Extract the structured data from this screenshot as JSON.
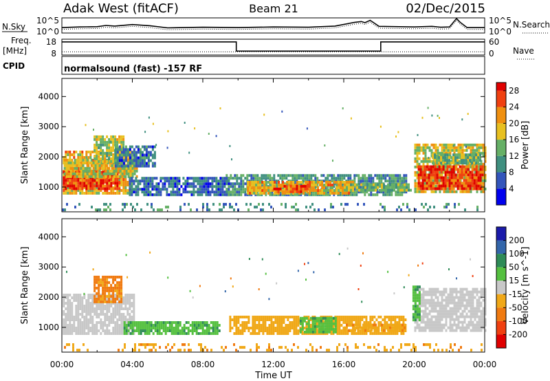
{
  "header": {
    "radar": "Adak West (fitACF)",
    "beam": "Beam 21",
    "date": "02/Dec/2015"
  },
  "nsky_panel": {
    "left_label": "N.Sky",
    "right_label": "N.Search",
    "y_ticks": [
      "10^5",
      "10^0"
    ],
    "y_range_log10": [
      0,
      5
    ],
    "x_hours": [
      0,
      1,
      2,
      2.5,
      3,
      4,
      5,
      6,
      8,
      10,
      12,
      14,
      15.5,
      16.6,
      17,
      17.2,
      17.5,
      18,
      20,
      21,
      21.5,
      22,
      22.4,
      22.6,
      23,
      24
    ],
    "values_log10": [
      1.8,
      2.0,
      2.1,
      2.5,
      2.3,
      2.8,
      2.4,
      1.7,
      1.9,
      1.8,
      2.0,
      1.9,
      2.3,
      3.5,
      3.8,
      3.4,
      4.2,
      2.2,
      2.0,
      2.2,
      1.9,
      2.0,
      4.8,
      3.6,
      1.8,
      1.8
    ]
  },
  "freq_panel": {
    "left_label": "Freq.",
    "left_unit": "[MHz]",
    "right_label": "Nave",
    "left_ticks": [
      "18",
      "8"
    ],
    "right_ticks": [
      "60",
      "0"
    ],
    "freq_range_mhz": [
      8,
      18
    ],
    "freq_steps": [
      {
        "from_h": 0,
        "to_h": 9.9,
        "mhz": 16.3
      },
      {
        "from_h": 9.9,
        "to_h": 18.1,
        "mhz": 10.5
      },
      {
        "from_h": 18.1,
        "to_h": 24,
        "mhz": 16.3
      }
    ],
    "nave_range": [
      0,
      60
    ],
    "nave_value": 12
  },
  "cpid": {
    "label": "CPID",
    "text": "normalsound (fast) -157 RF"
  },
  "chart_data": [
    {
      "type": "heatmap",
      "name": "power",
      "ylabel": "Slant Range [km]",
      "xlabel": "Time UT",
      "x_ticks": [
        "00:00",
        "04:00",
        "08:00",
        "12:00",
        "16:00",
        "20:00",
        "00:00"
      ],
      "y_ticks": [
        1000,
        2000,
        3000,
        4000
      ],
      "xlim_hours": [
        0,
        24
      ],
      "ylim_km": [
        180,
        4600
      ],
      "colorbar": {
        "label": "Power [dB]",
        "ticks": [
          4,
          8,
          12,
          16,
          20,
          24,
          28
        ],
        "range": [
          0,
          30
        ]
      },
      "regions": [
        {
          "t0": 0.05,
          "t1": 4.0,
          "r0": 750,
          "r1": 2150,
          "v": 20
        },
        {
          "t0": 0.05,
          "t1": 3.3,
          "r0": 900,
          "r1": 1500,
          "v": 28
        },
        {
          "t0": 0.1,
          "t1": 4.2,
          "r0": 1300,
          "r1": 1900,
          "v": 17
        },
        {
          "t0": 1.8,
          "t1": 3.5,
          "r0": 1800,
          "r1": 2650,
          "v": 16
        },
        {
          "t0": 3.0,
          "t1": 5.3,
          "r0": 1650,
          "r1": 2300,
          "v": 8
        },
        {
          "t0": 3.8,
          "t1": 9.5,
          "r0": 700,
          "r1": 1250,
          "v": 7
        },
        {
          "t0": 9.3,
          "t1": 19.5,
          "r0": 700,
          "r1": 1350,
          "v": 11
        },
        {
          "t0": 10.5,
          "t1": 16.5,
          "r0": 750,
          "r1": 1200,
          "v": 20
        },
        {
          "t0": 12.0,
          "t1": 14.0,
          "r0": 800,
          "r1": 1050,
          "v": 26
        },
        {
          "t0": 16.0,
          "t1": 19.8,
          "r0": 850,
          "r1": 1100,
          "v": 14
        },
        {
          "t0": 20.0,
          "t1": 24.0,
          "r0": 800,
          "r1": 2350,
          "v": 17
        },
        {
          "t0": 20.2,
          "t1": 23.9,
          "r0": 900,
          "r1": 1650,
          "v": 27
        },
        {
          "t0": 21.0,
          "t1": 23.8,
          "r0": 1750,
          "r1": 2100,
          "v": 14
        },
        {
          "t0": 0.0,
          "t1": 24.0,
          "r0": 200,
          "r1": 420,
          "v": 9
        }
      ]
    },
    {
      "type": "heatmap",
      "name": "velocity",
      "ylabel": "Slant Range [km]",
      "xlabel": "Time UT",
      "x_ticks": [
        "00:00",
        "04:00",
        "08:00",
        "12:00",
        "16:00",
        "20:00",
        "00:00"
      ],
      "y_ticks": [
        1000,
        2000,
        3000,
        4000
      ],
      "xlim_hours": [
        0,
        24
      ],
      "ylim_km": [
        180,
        4600
      ],
      "colorbar": {
        "label": "Velocity [m s^-1]",
        "tick_labels": [
          "200",
          "100",
          "50",
          "15",
          "-15",
          "-50",
          "-100",
          "-200"
        ],
        "range": [
          -250,
          250
        ]
      },
      "regions": [
        {
          "t0": 0.05,
          "t1": 4.1,
          "r0": 750,
          "r1": 2100,
          "v": 0
        },
        {
          "t0": 1.8,
          "t1": 3.4,
          "r0": 1800,
          "r1": 2650,
          "v": -60
        },
        {
          "t0": 3.5,
          "t1": 9.0,
          "r0": 750,
          "r1": 1200,
          "v": 40
        },
        {
          "t0": 9.5,
          "t1": 19.5,
          "r0": 750,
          "r1": 1350,
          "v": -30
        },
        {
          "t0": 13.5,
          "t1": 15.5,
          "r0": 800,
          "r1": 1300,
          "v": 40
        },
        {
          "t0": 16.0,
          "t1": 19.5,
          "r0": 850,
          "r1": 1050,
          "v": -40
        },
        {
          "t0": 20.0,
          "t1": 24.0,
          "r0": 850,
          "r1": 2300,
          "v": 0
        },
        {
          "t0": 19.9,
          "t1": 20.3,
          "r0": 1200,
          "r1": 2300,
          "v": 45
        },
        {
          "t0": 0.0,
          "t1": 24.0,
          "r0": 200,
          "r1": 420,
          "v": -40
        }
      ]
    }
  ]
}
